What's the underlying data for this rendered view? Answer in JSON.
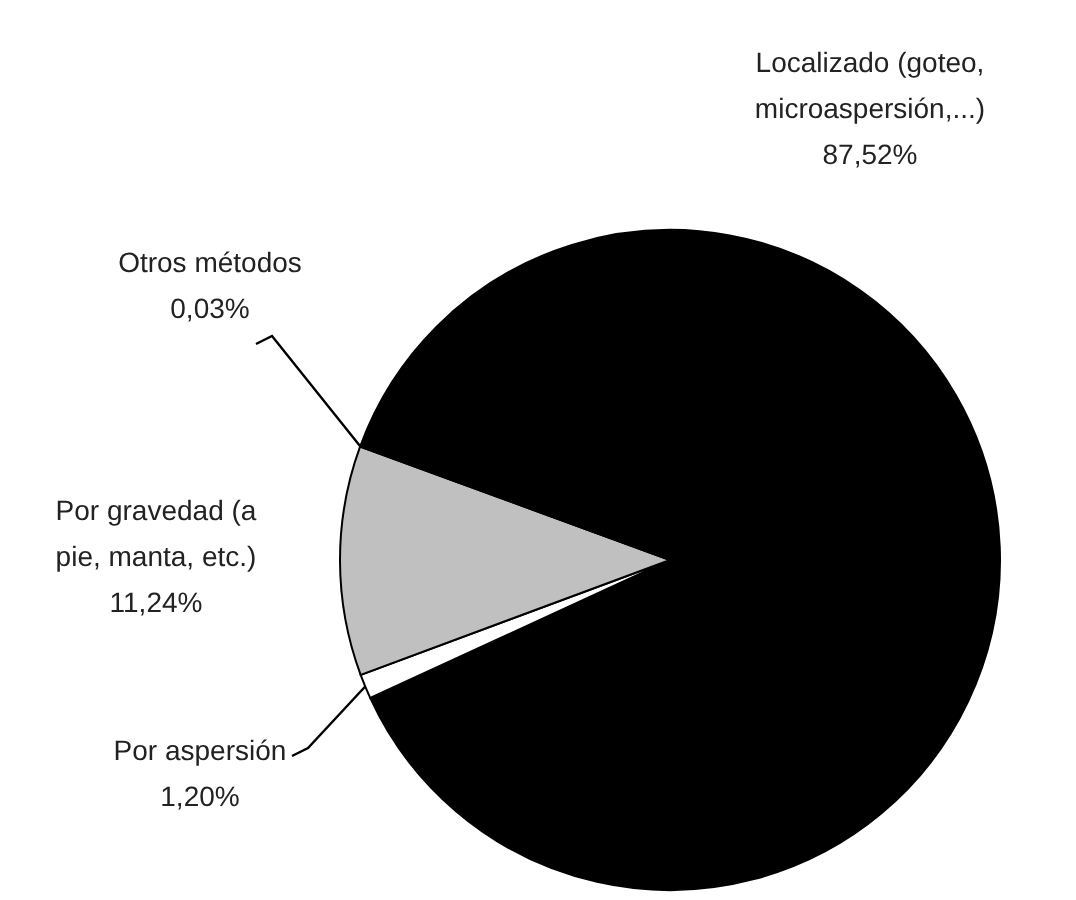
{
  "chart_data": {
    "type": "pie",
    "categories": [
      "Localizado (goteo, microaspersión,...)",
      "Por aspersión",
      "Por gravedad (a pie, manta, etc.)",
      "Otros métodos"
    ],
    "values": [
      87.52,
      1.2,
      11.24,
      0.03
    ],
    "value_labels": [
      "87,52%",
      "1,20%",
      "11,24%",
      "0,03%"
    ],
    "colors": [
      "#000000",
      "#ffffff",
      "#c0c0c0",
      "#808080"
    ]
  }
}
